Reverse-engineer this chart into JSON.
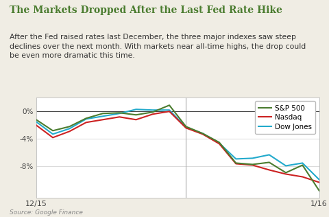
{
  "title": "The Markets Dropped After the Last Fed Rate Hike",
  "subtitle": "After the Fed raised rates last December, the three major indexes saw steep\ndeclines over the next month. With markets near all-time highs, the drop could\nbe even more dramatic this time.",
  "source": "Source: Google Finance",
  "title_color": "#4a7c2f",
  "subtitle_color": "#333333",
  "source_color": "#888888",
  "background_color": "#f0ede4",
  "plot_background": "#ffffff",
  "x_labels": [
    "12/15",
    "1/16"
  ],
  "x_vline_position": 9,
  "ylim": [
    -12.5,
    2.0
  ],
  "yticks": [
    0,
    -4,
    -8
  ],
  "ytick_labels": [
    "0%",
    "-4%",
    "-8%"
  ],
  "sp500_color": "#4a7c2f",
  "nasdaq_color": "#cc2222",
  "dowjones_color": "#22aacc",
  "sp500": [
    -1.2,
    -2.8,
    -2.2,
    -1.0,
    -0.3,
    -0.2,
    -0.5,
    -0.1,
    0.9,
    -2.2,
    -3.2,
    -4.5,
    -7.5,
    -7.7,
    -7.4,
    -8.9,
    -7.8,
    -11.5
  ],
  "nasdaq": [
    -2.0,
    -3.8,
    -2.9,
    -1.6,
    -1.2,
    -0.8,
    -1.2,
    -0.4,
    0.0,
    -2.4,
    -3.3,
    -4.7,
    -7.6,
    -7.8,
    -8.5,
    -9.1,
    -9.5,
    -10.3
  ],
  "dowjones": [
    -1.5,
    -3.3,
    -2.5,
    -1.1,
    -0.7,
    -0.3,
    0.3,
    0.2,
    0.2,
    -2.3,
    -3.2,
    -4.6,
    -6.9,
    -6.8,
    -6.3,
    -7.9,
    -7.5,
    -9.9
  ],
  "legend_labels": [
    "S&P 500",
    "Nasdaq",
    "Dow Jones"
  ],
  "figsize": [
    4.8,
    3.16
  ],
  "dpi": 100
}
